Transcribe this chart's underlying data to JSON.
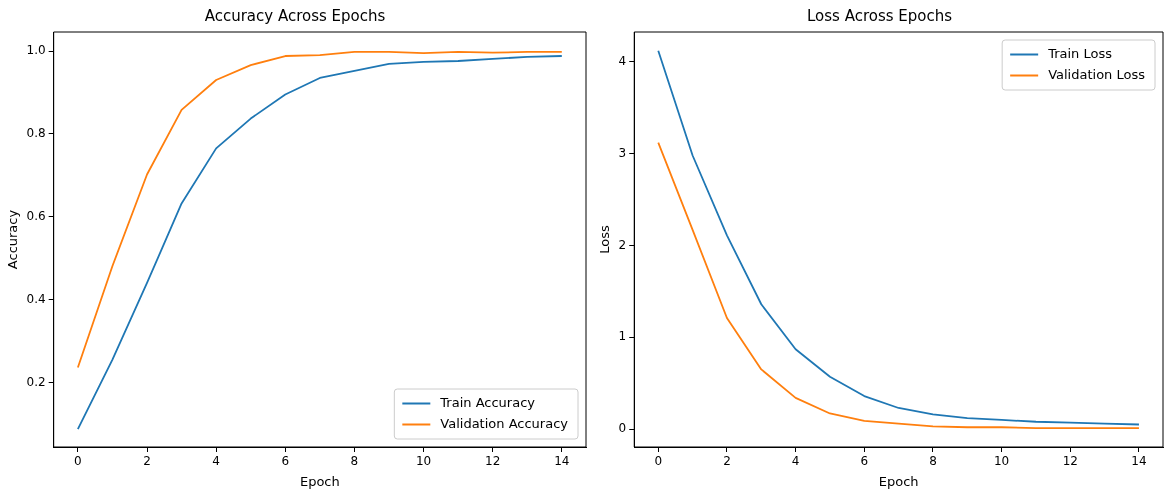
{
  "chart_data": [
    {
      "type": "line",
      "title": "Accuracy Across Epochs",
      "xlabel": "Epoch",
      "ylabel": "Accuracy",
      "x": [
        0,
        1,
        2,
        3,
        4,
        5,
        6,
        7,
        8,
        9,
        10,
        11,
        12,
        13,
        14
      ],
      "xlim": [
        -0.7,
        14.7
      ],
      "xticks": [
        0,
        2,
        4,
        6,
        8,
        10,
        12,
        14
      ],
      "ylim": [
        0.044,
        1.046
      ],
      "yticks": [
        0.2,
        0.4,
        0.6,
        0.8,
        {
          "value": 1,
          "label": "1.0"
        }
      ],
      "grid": false,
      "legend": "bottom right",
      "marker": "none",
      "line_style": "solid",
      "series": [
        {
          "name": "Train Accuracy",
          "color": "#1f77b4",
          "values": [
            0.087,
            0.255,
            0.44,
            0.632,
            0.765,
            0.837,
            0.895,
            0.935,
            0.952,
            0.969,
            0.974,
            0.976,
            0.981,
            0.986,
            0.988
          ]
        },
        {
          "name": "Validation Accuracy",
          "color": "#ff7f0e",
          "values": [
            0.236,
            0.481,
            0.702,
            0.858,
            0.93,
            0.966,
            0.988,
            0.99,
            0.998,
            0.998,
            0.995,
            0.998,
            0.996,
            0.998,
            0.998
          ]
        }
      ]
    },
    {
      "type": "line",
      "title": "Loss Across Epochs",
      "xlabel": "Epoch",
      "ylabel": "Loss",
      "x": [
        0,
        1,
        2,
        3,
        4,
        5,
        6,
        7,
        8,
        9,
        10,
        11,
        12,
        13,
        14
      ],
      "xlim": [
        -0.7,
        14.7
      ],
      "xticks": [
        0,
        2,
        4,
        6,
        8,
        10,
        12,
        14
      ],
      "ylim": [
        -0.195,
        4.325
      ],
      "yticks": [
        0,
        1,
        2,
        3,
        4
      ],
      "grid": false,
      "legend": "top right",
      "marker": "none",
      "line_style": "solid",
      "series": [
        {
          "name": "Train Loss",
          "color": "#1f77b4",
          "values": [
            4.12,
            2.98,
            2.11,
            1.36,
            0.87,
            0.57,
            0.36,
            0.23,
            0.16,
            0.12,
            0.1,
            0.08,
            0.07,
            0.06,
            0.05
          ]
        },
        {
          "name": "Validation Loss",
          "color": "#ff7f0e",
          "values": [
            3.12,
            2.17,
            1.21,
            0.65,
            0.34,
            0.17,
            0.09,
            0.06,
            0.03,
            0.02,
            0.02,
            0.01,
            0.01,
            0.01,
            0.01
          ]
        }
      ]
    }
  ]
}
